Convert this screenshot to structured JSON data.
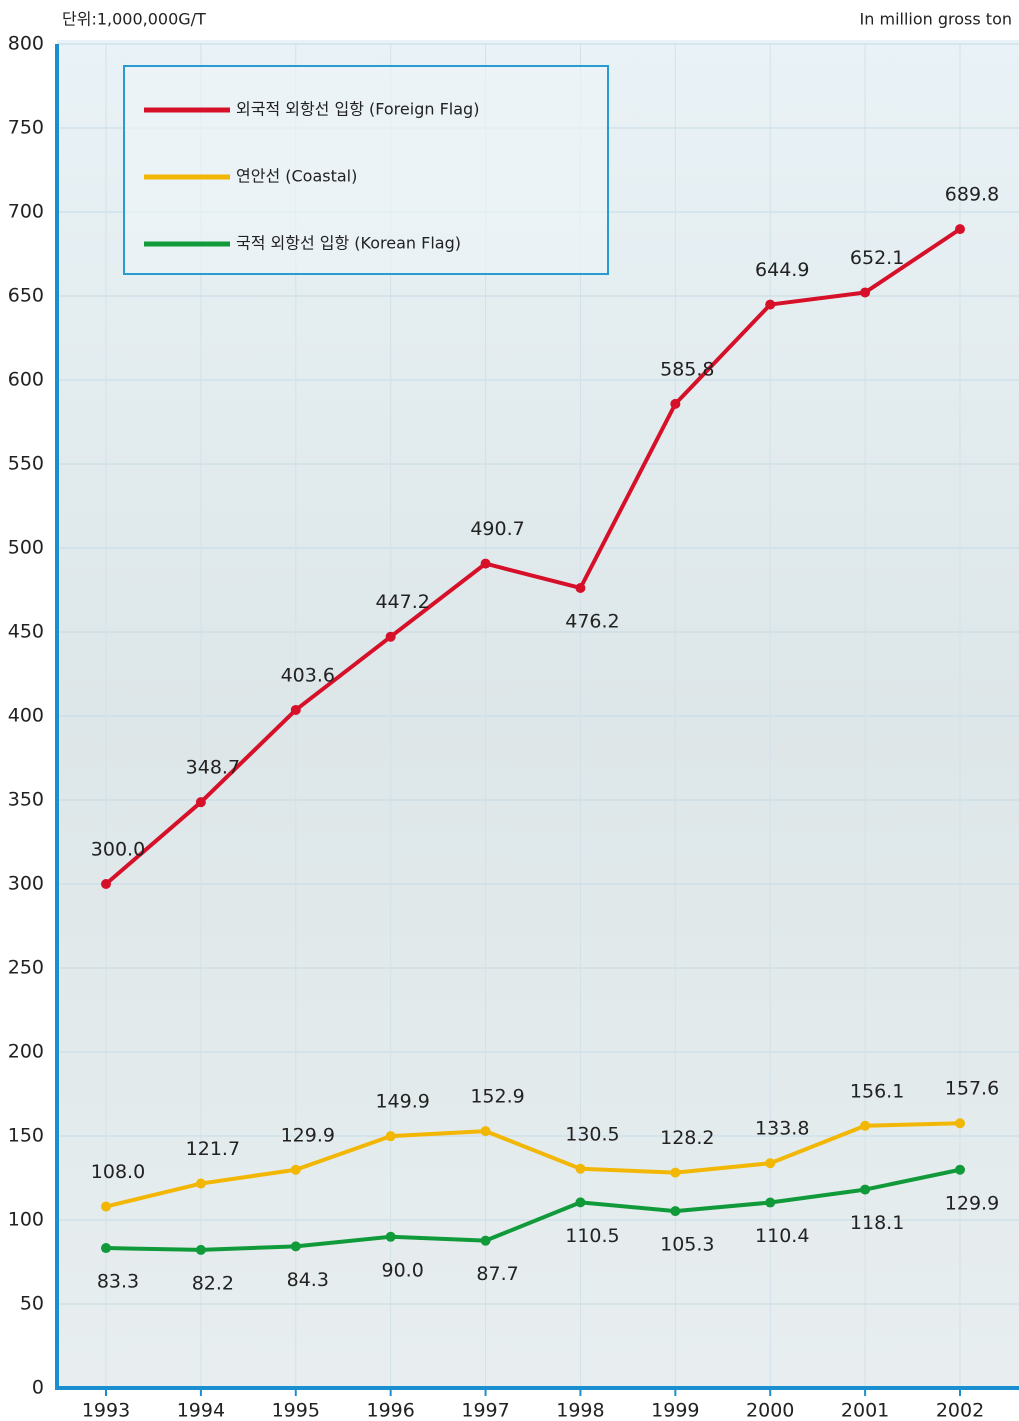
{
  "chart_data": {
    "type": "line",
    "unit_label": "단위:1,000,000G/T",
    "unit_label_en": "In million gross ton",
    "categories": [
      "1993",
      "1994",
      "1995",
      "1996",
      "1997",
      "1998",
      "1999",
      "2000",
      "2001",
      "2002"
    ],
    "series": [
      {
        "name": "외국적 외항선 입항 (Foreign Flag)",
        "color": "#d7102a",
        "values": [
          300.0,
          348.7,
          403.6,
          447.2,
          490.7,
          476.2,
          585.8,
          644.9,
          652.1,
          689.8
        ],
        "value_labels": [
          "300.0",
          "348.7",
          "403.6",
          "447.2",
          "490.7",
          "476.2",
          "585.8",
          "644.9",
          "652.1",
          "689.8"
        ]
      },
      {
        "name": "연안선 (Coastal)",
        "color": "#f2b705",
        "values": [
          108.0,
          121.7,
          129.9,
          149.9,
          152.9,
          130.5,
          128.2,
          133.8,
          156.1,
          157.6
        ],
        "value_labels": [
          "108.0",
          "121.7",
          "129.9",
          "149.9",
          "152.9",
          "130.5",
          "128.2",
          "133.8",
          "156.1",
          "157.6"
        ]
      },
      {
        "name": "국적 외항선 입항 (Korean Flag)",
        "color": "#109a3a",
        "values": [
          83.3,
          82.2,
          84.3,
          90.0,
          87.7,
          110.5,
          105.3,
          110.4,
          118.1,
          129.9
        ],
        "value_labels": [
          "83.3",
          "82.2",
          "84.3",
          "90.0",
          "87.7",
          "110.5",
          "105.3",
          "110.4",
          "118.1",
          "129.9"
        ]
      }
    ],
    "ylim": [
      0,
      800
    ],
    "yticks": [
      0,
      50,
      100,
      150,
      200,
      250,
      300,
      350,
      400,
      450,
      500,
      550,
      600,
      650,
      700,
      750,
      800
    ],
    "grid": true
  }
}
